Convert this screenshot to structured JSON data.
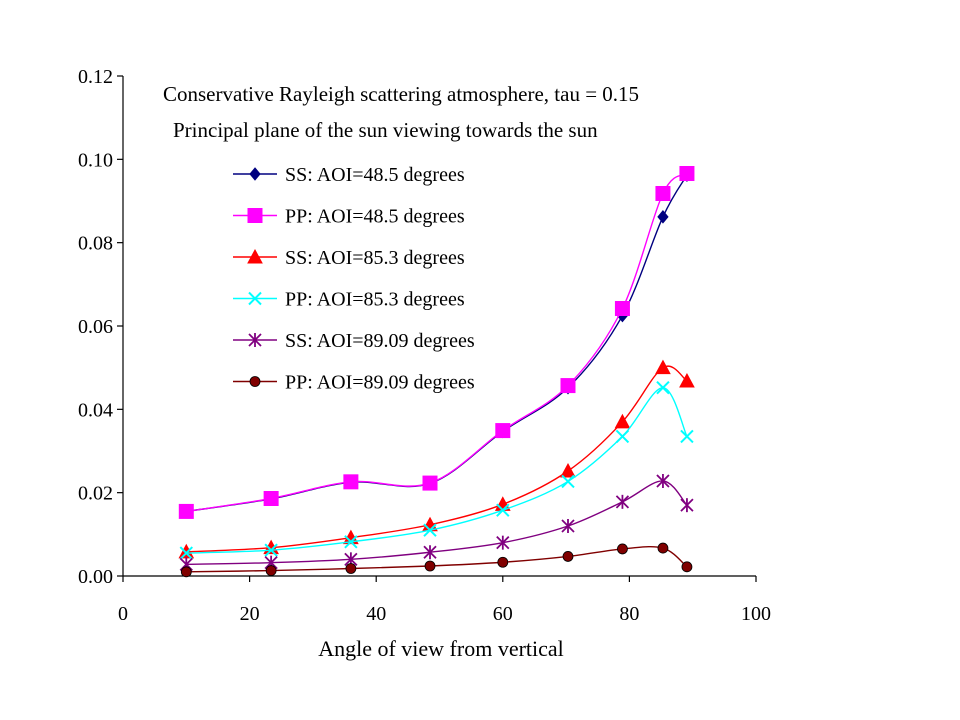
{
  "chart_data": {
    "type": "line",
    "title": "Conservative Rayleigh scattering atmosphere, tau = 0.15",
    "subtitle": "Principal plane of the sun viewing towards the sun",
    "xlabel": "Angle of view from vertical",
    "ylabel": "",
    "xlim": [
      0,
      100
    ],
    "ylim": [
      0,
      0.12
    ],
    "x_ticks": [
      "0",
      "20",
      "40",
      "60",
      "80",
      "100"
    ],
    "y_ticks": [
      "0.00",
      "0.02",
      "0.04",
      "0.06",
      "0.08",
      "0.10",
      "0.12"
    ],
    "x_tick_values": [
      0,
      20,
      40,
      60,
      80,
      100
    ],
    "y_tick_values": [
      0,
      0.02,
      0.04,
      0.06,
      0.08,
      0.1,
      0.12
    ],
    "grid": false,
    "legend_position": "top-center",
    "x": [
      10,
      23.4,
      36,
      48.5,
      60,
      70.3,
      78.9,
      85.3,
      89.09
    ],
    "series": [
      {
        "name": "SS: AOI=48.5 degrees",
        "marker": "diamond",
        "color": "#000080",
        "values": [
          0.0155,
          0.0185,
          0.0225,
          0.0222,
          0.0347,
          0.0452,
          0.0625,
          0.0862,
          0.0962
        ]
      },
      {
        "name": "PP: AOI=48.5 degrees",
        "marker": "square",
        "color": "#ff00ff",
        "values": [
          0.0155,
          0.0186,
          0.0226,
          0.0223,
          0.0349,
          0.0457,
          0.0642,
          0.0918,
          0.0966
        ]
      },
      {
        "name": "SS: AOI=85.3 degrees",
        "marker": "triangle",
        "color": "#ff0000",
        "values": [
          0.0058,
          0.0068,
          0.0092,
          0.0123,
          0.0172,
          0.0252,
          0.037,
          0.05,
          0.0468
        ]
      },
      {
        "name": "PP: AOI=85.3 degrees",
        "marker": "x",
        "color": "#00ffff",
        "values": [
          0.0055,
          0.0062,
          0.0082,
          0.011,
          0.0158,
          0.0227,
          0.0335,
          0.0452,
          0.0335
        ]
      },
      {
        "name": "SS: AOI=89.09 degrees",
        "marker": "star",
        "color": "#800080",
        "values": [
          0.0028,
          0.0032,
          0.004,
          0.0057,
          0.008,
          0.012,
          0.0178,
          0.0228,
          0.017
        ]
      },
      {
        "name": "PP: AOI=89.09 degrees",
        "marker": "circle",
        "color": "#800000",
        "values": [
          0.001,
          0.0013,
          0.0018,
          0.0024,
          0.0033,
          0.0047,
          0.0065,
          0.0067,
          0.0022
        ]
      }
    ]
  }
}
